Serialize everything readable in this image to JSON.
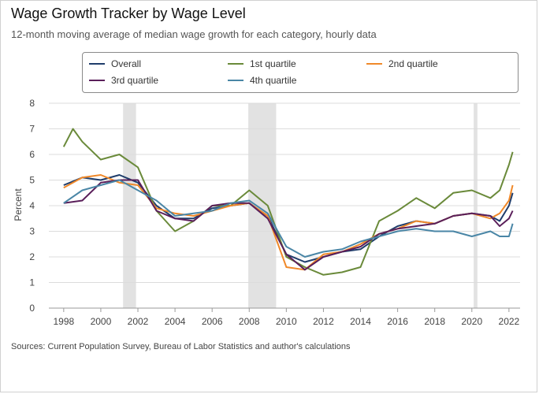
{
  "chart_data": {
    "type": "line",
    "title": "Wage Growth Tracker by Wage Level",
    "subtitle": "12-month moving average of median wage growth for each category, hourly data",
    "ylabel": "Percent",
    "xlabel": "",
    "source": "Sources: Current Population Survey, Bureau of Labor Statistics and author's calculations",
    "ylim": [
      0,
      8
    ],
    "xlim": [
      1997.2,
      2022.6
    ],
    "y_ticks": [
      "0",
      "1",
      "2",
      "3",
      "4",
      "5",
      "6",
      "7",
      "8"
    ],
    "x_ticks": [
      "1998",
      "2000",
      "2002",
      "2004",
      "2006",
      "2008",
      "2010",
      "2012",
      "2014",
      "2016",
      "2018",
      "2020",
      "2022"
    ],
    "grid": "horizontal",
    "legend_position": "top",
    "recessions": [
      [
        2001.2,
        2001.9
      ],
      [
        2007.95,
        2009.45
      ],
      [
        2020.1,
        2020.3
      ]
    ],
    "series": [
      {
        "name": "Overall",
        "color": "#1f3d6b",
        "points": [
          [
            1998,
            4.8
          ],
          [
            1999,
            5.1
          ],
          [
            2000,
            5.0
          ],
          [
            2001,
            5.2
          ],
          [
            2002,
            4.9
          ],
          [
            2003,
            4.0
          ],
          [
            2004,
            3.5
          ],
          [
            2005,
            3.5
          ],
          [
            2006,
            3.9
          ],
          [
            2007,
            4.0
          ],
          [
            2008,
            4.1
          ],
          [
            2009,
            3.6
          ],
          [
            2010,
            2.1
          ],
          [
            2011,
            1.8
          ],
          [
            2012,
            2.0
          ],
          [
            2013,
            2.2
          ],
          [
            2014,
            2.3
          ],
          [
            2015,
            2.8
          ],
          [
            2016,
            3.2
          ],
          [
            2017,
            3.4
          ],
          [
            2018,
            3.3
          ],
          [
            2019,
            3.6
          ],
          [
            2020,
            3.7
          ],
          [
            2021,
            3.6
          ],
          [
            2021.5,
            3.4
          ],
          [
            2022,
            4.0
          ],
          [
            2022.2,
            4.5
          ]
        ]
      },
      {
        "name": "1st quartile",
        "color": "#6a8a3a",
        "points": [
          [
            1998,
            6.3
          ],
          [
            1998.5,
            7.0
          ],
          [
            1999,
            6.5
          ],
          [
            2000,
            5.8
          ],
          [
            2001,
            6.0
          ],
          [
            2002,
            5.5
          ],
          [
            2003,
            3.8
          ],
          [
            2004,
            3.0
          ],
          [
            2005,
            3.4
          ],
          [
            2006,
            4.0
          ],
          [
            2007,
            4.0
          ],
          [
            2008,
            4.6
          ],
          [
            2009,
            4.0
          ],
          [
            2010,
            2.0
          ],
          [
            2011,
            1.6
          ],
          [
            2012,
            1.3
          ],
          [
            2013,
            1.4
          ],
          [
            2014,
            1.6
          ],
          [
            2015,
            3.4
          ],
          [
            2016,
            3.8
          ],
          [
            2017,
            4.3
          ],
          [
            2018,
            3.9
          ],
          [
            2019,
            4.5
          ],
          [
            2020,
            4.6
          ],
          [
            2021,
            4.3
          ],
          [
            2021.5,
            4.6
          ],
          [
            2022,
            5.6
          ],
          [
            2022.2,
            6.1
          ]
        ]
      },
      {
        "name": "2nd quartile",
        "color": "#f0892a",
        "points": [
          [
            1998,
            4.7
          ],
          [
            1999,
            5.1
          ],
          [
            2000,
            5.2
          ],
          [
            2001,
            4.9
          ],
          [
            2002,
            4.8
          ],
          [
            2003,
            3.9
          ],
          [
            2004,
            3.7
          ],
          [
            2005,
            3.6
          ],
          [
            2006,
            3.8
          ],
          [
            2007,
            4.0
          ],
          [
            2008,
            4.1
          ],
          [
            2009,
            3.6
          ],
          [
            2010,
            1.6
          ],
          [
            2011,
            1.5
          ],
          [
            2012,
            2.1
          ],
          [
            2013,
            2.2
          ],
          [
            2014,
            2.5
          ],
          [
            2015,
            2.9
          ],
          [
            2016,
            3.1
          ],
          [
            2017,
            3.4
          ],
          [
            2018,
            3.3
          ],
          [
            2019,
            3.6
          ],
          [
            2020,
            3.7
          ],
          [
            2021,
            3.5
          ],
          [
            2021.5,
            3.7
          ],
          [
            2022,
            4.2
          ],
          [
            2022.2,
            4.8
          ]
        ]
      },
      {
        "name": "3rd quartile",
        "color": "#5a1f5a",
        "points": [
          [
            1998,
            4.1
          ],
          [
            1999,
            4.2
          ],
          [
            2000,
            4.9
          ],
          [
            2001,
            5.0
          ],
          [
            2002,
            5.0
          ],
          [
            2003,
            3.8
          ],
          [
            2004,
            3.5
          ],
          [
            2005,
            3.4
          ],
          [
            2006,
            4.0
          ],
          [
            2007,
            4.1
          ],
          [
            2008,
            4.1
          ],
          [
            2009,
            3.5
          ],
          [
            2010,
            2.1
          ],
          [
            2011,
            1.5
          ],
          [
            2012,
            2.0
          ],
          [
            2013,
            2.2
          ],
          [
            2014,
            2.4
          ],
          [
            2015,
            2.9
          ],
          [
            2016,
            3.1
          ],
          [
            2017,
            3.2
          ],
          [
            2018,
            3.3
          ],
          [
            2019,
            3.6
          ],
          [
            2020,
            3.7
          ],
          [
            2021,
            3.6
          ],
          [
            2021.5,
            3.2
          ],
          [
            2022,
            3.5
          ],
          [
            2022.2,
            3.8
          ]
        ]
      },
      {
        "name": "4th quartile",
        "color": "#4a86a6",
        "points": [
          [
            1998,
            4.1
          ],
          [
            1999,
            4.6
          ],
          [
            2000,
            4.8
          ],
          [
            2001,
            5.0
          ],
          [
            2002,
            4.6
          ],
          [
            2003,
            4.2
          ],
          [
            2004,
            3.6
          ],
          [
            2005,
            3.7
          ],
          [
            2006,
            3.8
          ],
          [
            2007,
            4.1
          ],
          [
            2008,
            4.2
          ],
          [
            2009,
            3.7
          ],
          [
            2010,
            2.4
          ],
          [
            2011,
            2.0
          ],
          [
            2012,
            2.2
          ],
          [
            2013,
            2.3
          ],
          [
            2014,
            2.6
          ],
          [
            2015,
            2.8
          ],
          [
            2016,
            3.0
          ],
          [
            2017,
            3.1
          ],
          [
            2018,
            3.0
          ],
          [
            2019,
            3.0
          ],
          [
            2020,
            2.8
          ],
          [
            2021,
            3.0
          ],
          [
            2021.5,
            2.8
          ],
          [
            2022,
            2.8
          ],
          [
            2022.2,
            3.3
          ]
        ]
      }
    ]
  }
}
